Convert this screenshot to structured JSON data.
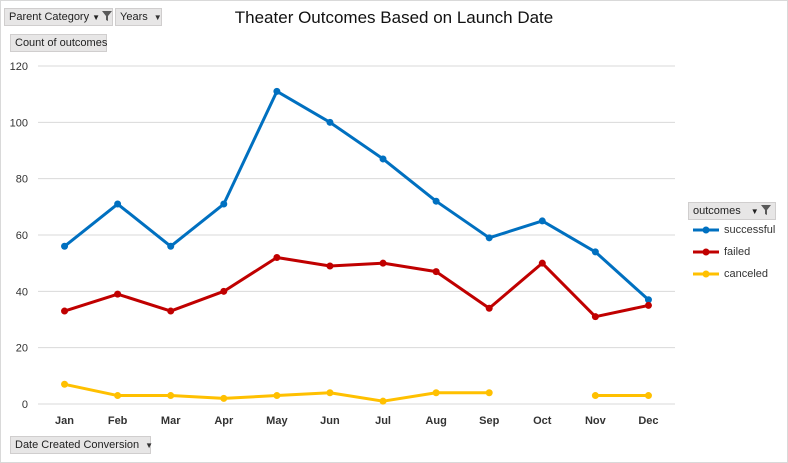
{
  "field_buttons": {
    "parent_category": "Parent Category",
    "years": "Years",
    "count_of_outcomes": "Count of outcomes",
    "date_created": "Date Created Conversion",
    "outcomes": "outcomes"
  },
  "icons": [
    "dropdown-arrow-icon",
    "filter-icon"
  ],
  "chart_data": {
    "type": "line",
    "title": "Theater Outcomes Based on Launch Date",
    "xlabel": "",
    "ylabel": "",
    "categories": [
      "Jan",
      "Feb",
      "Mar",
      "Apr",
      "May",
      "Jun",
      "Jul",
      "Aug",
      "Sep",
      "Oct",
      "Nov",
      "Dec"
    ],
    "ylim": [
      0,
      120
    ],
    "yticks": [
      0,
      20,
      40,
      60,
      80,
      100,
      120
    ],
    "grid": true,
    "legend_position": "right",
    "legend_title": "outcomes",
    "series": [
      {
        "name": "successful",
        "color": "#0070C0",
        "values": [
          56,
          71,
          56,
          71,
          111,
          100,
          87,
          72,
          59,
          65,
          54,
          37
        ]
      },
      {
        "name": "failed",
        "color": "#C00000",
        "values": [
          33,
          39,
          33,
          40,
          52,
          49,
          50,
          47,
          34,
          50,
          31,
          35
        ]
      },
      {
        "name": "canceled",
        "color": "#FFC000",
        "values": [
          7,
          3,
          3,
          2,
          3,
          4,
          1,
          4,
          4,
          null,
          3,
          3
        ]
      }
    ]
  }
}
